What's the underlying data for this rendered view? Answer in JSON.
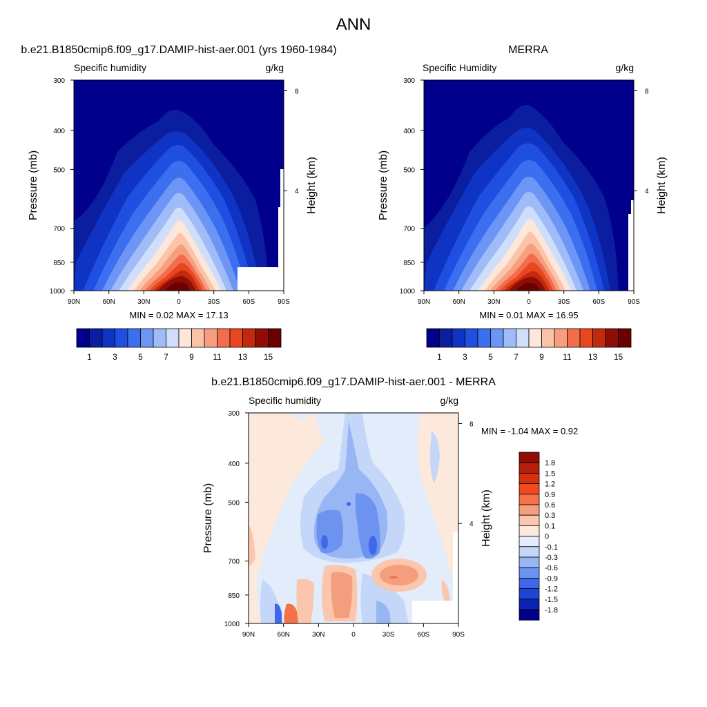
{
  "figure": {
    "title": "ANN"
  },
  "chart_data": [
    {
      "type": "contour",
      "panel_title": "b.e21.B1850cmip6.f09_g17.DAMIP-hist-aer.001 (yrs 1960-1984)",
      "left_label": "Specific humidity",
      "right_label": "g/kg",
      "ylabel": "Pressure (mb)",
      "ylabel_right": "Height (km)",
      "x_ticks": [
        "90N",
        "60N",
        "30N",
        "0",
        "30S",
        "60S",
        "90S"
      ],
      "y_ticks": [
        "300",
        "400",
        "500",
        "700",
        "850",
        "1000"
      ],
      "y_ticks_right": [
        "8",
        "4"
      ],
      "ylim": [
        1000,
        300
      ],
      "xlim": [
        90,
        -90
      ],
      "stats": {
        "min_label": "MIN =",
        "min": "0.02",
        "max_label": "MAX =",
        "max": "17.13"
      },
      "colorbar": {
        "levels": [
          1,
          2,
          3,
          4,
          5,
          6,
          7,
          8,
          9,
          10,
          11,
          12,
          13,
          14,
          15
        ],
        "labels": [
          "1",
          "3",
          "5",
          "7",
          "9",
          "11",
          "13",
          "15"
        ],
        "colors": [
          "#00008c",
          "#0b1ea0",
          "#0f33c2",
          "#1f4fe0",
          "#3b6ff0",
          "#6c95f5",
          "#9fbcf8",
          "#cfdffb",
          "#fde6da",
          "#fbc4a9",
          "#f79e7e",
          "#f26d4c",
          "#e8461f",
          "#c22a0f",
          "#8f0d06",
          "#6a0000"
        ]
      },
      "peak": {
        "lat": 0,
        "pressure": 1000,
        "value": 17.13
      }
    },
    {
      "type": "contour",
      "panel_title": "MERRA",
      "left_label": "Specific Humidity",
      "right_label": "g/kg",
      "ylabel": "Pressure (mb)",
      "ylabel_right": "Height (km)",
      "x_ticks": [
        "90N",
        "60N",
        "30N",
        "0",
        "30S",
        "60S",
        "90S"
      ],
      "y_ticks": [
        "300",
        "400",
        "500",
        "700",
        "850",
        "1000"
      ],
      "y_ticks_right": [
        "8",
        "4"
      ],
      "ylim": [
        1000,
        300
      ],
      "xlim": [
        90,
        -90
      ],
      "stats": {
        "min_label": "MIN =",
        "min": "0.01",
        "max_label": "MAX =",
        "max": "16.95"
      },
      "colorbar": {
        "levels": [
          1,
          2,
          3,
          4,
          5,
          6,
          7,
          8,
          9,
          10,
          11,
          12,
          13,
          14,
          15
        ],
        "labels": [
          "1",
          "3",
          "5",
          "7",
          "9",
          "11",
          "13",
          "15"
        ],
        "colors": [
          "#00008c",
          "#0b1ea0",
          "#0f33c2",
          "#1f4fe0",
          "#3b6ff0",
          "#6c95f5",
          "#9fbcf8",
          "#cfdffb",
          "#fde6da",
          "#fbc4a9",
          "#f79e7e",
          "#f26d4c",
          "#e8461f",
          "#c22a0f",
          "#8f0d06",
          "#6a0000"
        ]
      },
      "peak": {
        "lat": 0,
        "pressure": 1000,
        "value": 16.95
      }
    },
    {
      "type": "contour",
      "panel_title": "b.e21.B1850cmip6.f09_g17.DAMIP-hist-aer.001 - MERRA",
      "left_label": "Specific humidity",
      "right_label": "g/kg",
      "ylabel": "Pressure (mb)",
      "ylabel_right": "Height (km)",
      "x_ticks": [
        "90N",
        "60N",
        "30N",
        "0",
        "30S",
        "60S",
        "90S"
      ],
      "y_ticks": [
        "300",
        "400",
        "500",
        "700",
        "850",
        "1000"
      ],
      "y_ticks_right": [
        "8",
        "4"
      ],
      "ylim": [
        1000,
        300
      ],
      "xlim": [
        90,
        -90
      ],
      "stats": {
        "min_label": "MIN =",
        "min": "-1.04",
        "max_label": "MAX =",
        "max": "0.92"
      },
      "colorbar": {
        "labels": [
          "1.8",
          "1.5",
          "1.2",
          "0.9",
          "0.6",
          "0.3",
          "0.1",
          "0",
          "-0.1",
          "-0.3",
          "-0.6",
          "-0.9",
          "-1.2",
          "-1.5",
          "-1.8"
        ],
        "colors": [
          "#8f0d06",
          "#b51e08",
          "#d7300c",
          "#f24a1c",
          "#f47247",
          "#f59e7e",
          "#fbc6ad",
          "#fde8dc",
          "#e3ecfb",
          "#c4d7f8",
          "#98b6f4",
          "#6b93ef",
          "#3f69ea",
          "#1f45d8",
          "#0b22b0",
          "#00008c"
        ]
      }
    }
  ]
}
